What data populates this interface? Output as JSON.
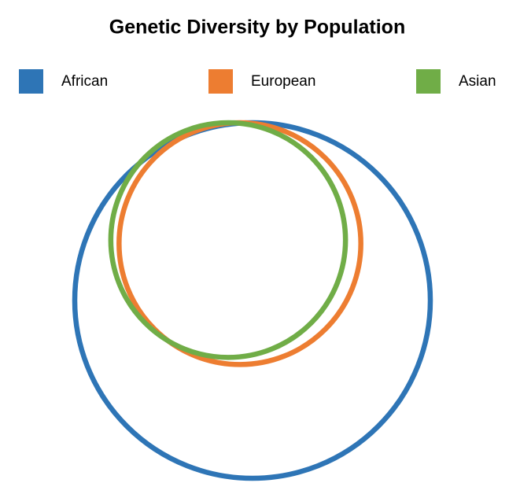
{
  "chart_data": {
    "type": "nested-circles",
    "title": "Genetic Diversity by Population",
    "series": [
      {
        "name": "African",
        "color": "#2e75b6",
        "values": [
          100
        ]
      },
      {
        "name": "European",
        "color": "#ed7d31",
        "values": [
          68
        ]
      },
      {
        "name": "Asian",
        "color": "#70ad47",
        "values": [
          66
        ]
      }
    ],
    "legend": "top"
  }
}
